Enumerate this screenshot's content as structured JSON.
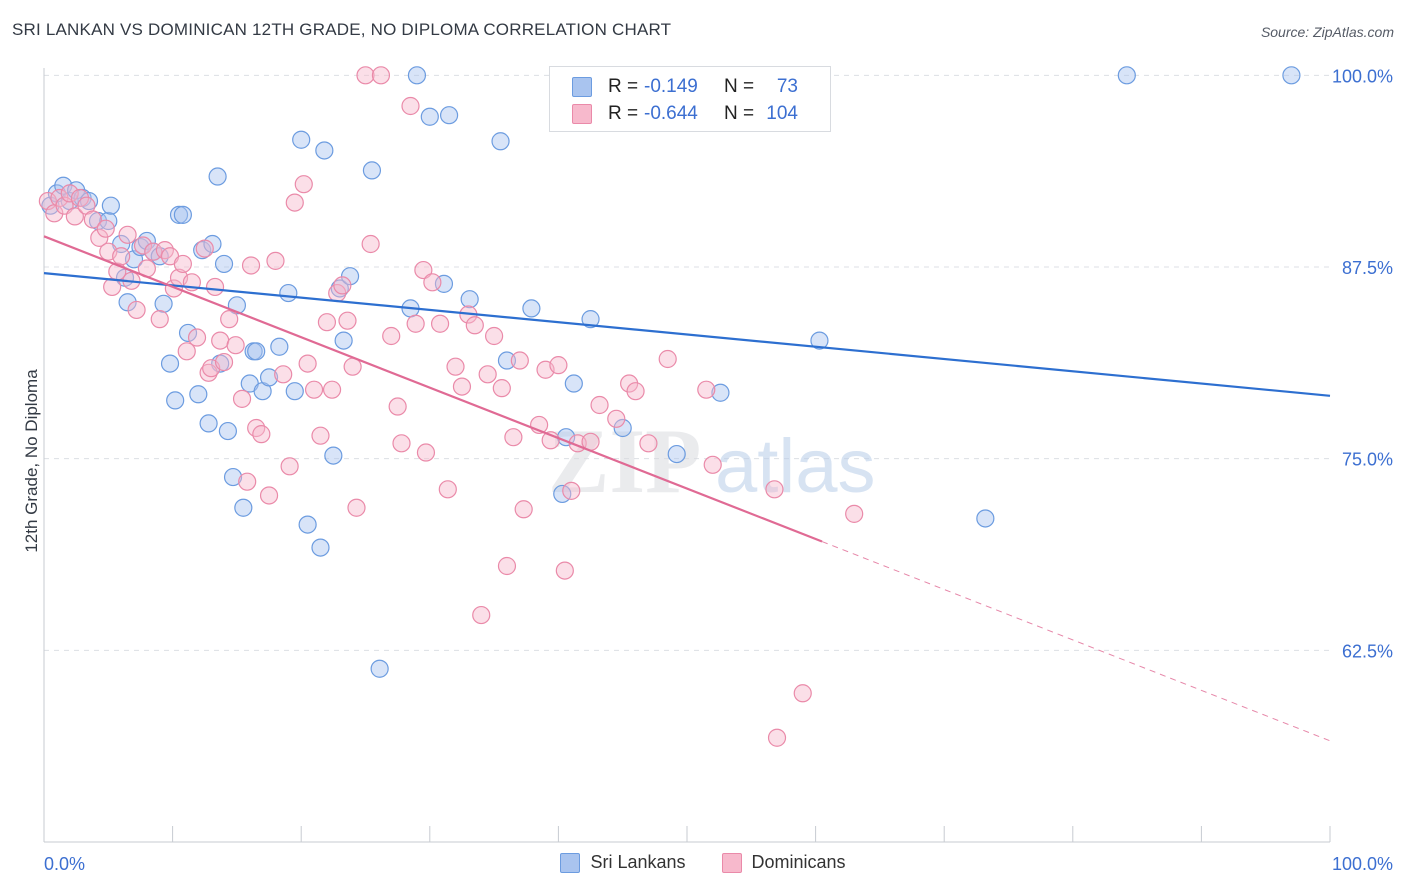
{
  "title": "SRI LANKAN VS DOMINICAN 12TH GRADE, NO DIPLOMA CORRELATION CHART",
  "source": "Source: ZipAtlas.com",
  "watermark": {
    "zip": "ZIP",
    "atlas": "atlas"
  },
  "legend": {
    "r_label": "R =",
    "n_label": "N =",
    "rows": [
      {
        "name": "Sri Lankans",
        "r": "-0.149",
        "n": "73",
        "fill": "#a9c4ef",
        "stroke": "#6c9ce0"
      },
      {
        "name": "Dominicans",
        "r": "-0.644",
        "n": "104",
        "fill": "#f7b9cc",
        "stroke": "#ea8aa9"
      }
    ]
  },
  "colors": {
    "blue_point_fill": "#a9c4ef",
    "blue_point_stroke": "#6c9ce0",
    "blue_line": "#2d6fd0",
    "pink_point_fill": "#f7b9cc",
    "pink_point_stroke": "#ea8aa9",
    "pink_line": "#e06a94",
    "tick_label": "#3c6fd1",
    "grid": "#dcdfe4"
  },
  "chart_data": {
    "type": "scatter",
    "title": "SRI LANKAN VS DOMINICAN 12TH GRADE, NO DIPLOMA CORRELATION CHART",
    "xlabel": "",
    "ylabel": "12th Grade, No Diploma",
    "xlim": [
      0,
      100
    ],
    "ylim": [
      50,
      101
    ],
    "x_tick_labels": [
      {
        "value": 0,
        "label": "0.0%"
      },
      {
        "value": 100,
        "label": "100.0%"
      }
    ],
    "y_tick_labels": [
      {
        "value": 100,
        "label": "100.0%"
      },
      {
        "value": 87.5,
        "label": "87.5%"
      },
      {
        "value": 75,
        "label": "75.0%"
      },
      {
        "value": 62.5,
        "label": "62.5%"
      }
    ],
    "x_minor_ticks": [
      0,
      10,
      20,
      30,
      40,
      50,
      60,
      70,
      80,
      90,
      100
    ],
    "grid": true,
    "legend_position": "top-center",
    "series": [
      {
        "name": "Sri Lankans",
        "trend": {
          "x0": 0,
          "y0": 87.1,
          "x1": 100,
          "y1": 79.1,
          "dashed_from": null
        },
        "points": [
          [
            0.5,
            91.5
          ],
          [
            1.0,
            92.3
          ],
          [
            1.5,
            92.8
          ],
          [
            2.0,
            91.8
          ],
          [
            2.5,
            92.5
          ],
          [
            3.0,
            92.0
          ],
          [
            3.5,
            91.8
          ],
          [
            4.2,
            90.5
          ],
          [
            5.0,
            90.5
          ],
          [
            5.2,
            91.5
          ],
          [
            6.0,
            89.0
          ],
          [
            6.3,
            86.8
          ],
          [
            6.5,
            85.2
          ],
          [
            7.0,
            88.0
          ],
          [
            7.5,
            88.8
          ],
          [
            8.0,
            89.2
          ],
          [
            8.5,
            88.5
          ],
          [
            9.0,
            88.2
          ],
          [
            9.3,
            85.1
          ],
          [
            9.8,
            81.2
          ],
          [
            10.2,
            78.8
          ],
          [
            10.5,
            90.9
          ],
          [
            10.8,
            90.9
          ],
          [
            11.2,
            83.2
          ],
          [
            12.0,
            79.2
          ],
          [
            12.3,
            88.6
          ],
          [
            12.8,
            77.3
          ],
          [
            13.1,
            89.0
          ],
          [
            13.5,
            93.4
          ],
          [
            13.7,
            81.2
          ],
          [
            14.0,
            87.7
          ],
          [
            14.3,
            76.8
          ],
          [
            14.7,
            73.8
          ],
          [
            15.0,
            85.0
          ],
          [
            15.5,
            71.8
          ],
          [
            16.0,
            79.9
          ],
          [
            16.3,
            82.0
          ],
          [
            16.5,
            82.0
          ],
          [
            17.0,
            79.4
          ],
          [
            17.5,
            80.3
          ],
          [
            18.3,
            82.3
          ],
          [
            19.0,
            85.8
          ],
          [
            19.5,
            79.4
          ],
          [
            20.0,
            95.8
          ],
          [
            20.5,
            70.7
          ],
          [
            21.5,
            69.2
          ],
          [
            21.8,
            95.1
          ],
          [
            22.5,
            75.2
          ],
          [
            23.0,
            86.1
          ],
          [
            23.3,
            82.7
          ],
          [
            23.8,
            86.9
          ],
          [
            25.5,
            93.8
          ],
          [
            26.1,
            61.3
          ],
          [
            28.5,
            84.8
          ],
          [
            29.0,
            100.0
          ],
          [
            30.0,
            97.3
          ],
          [
            31.1,
            86.4
          ],
          [
            31.5,
            97.4
          ],
          [
            33.1,
            85.4
          ],
          [
            35.5,
            95.7
          ],
          [
            36.0,
            81.4
          ],
          [
            37.9,
            84.8
          ],
          [
            40.3,
            72.7
          ],
          [
            40.6,
            76.4
          ],
          [
            41.2,
            79.9
          ],
          [
            42.5,
            84.1
          ],
          [
            45.0,
            77.0
          ],
          [
            49.2,
            75.3
          ],
          [
            52.6,
            79.3
          ],
          [
            60.3,
            82.7
          ],
          [
            73.2,
            71.1
          ],
          [
            84.2,
            100.0
          ],
          [
            97.0,
            100.0
          ]
        ]
      },
      {
        "name": "Dominicans",
        "trend": {
          "x0": 0,
          "y0": 89.5,
          "x1": 100,
          "y1": 56.6,
          "dashed_from": 60.5
        },
        "points": [
          [
            0.3,
            91.8
          ],
          [
            0.8,
            91.0
          ],
          [
            1.2,
            92.0
          ],
          [
            1.6,
            91.5
          ],
          [
            2.0,
            92.3
          ],
          [
            2.4,
            90.8
          ],
          [
            2.8,
            92.0
          ],
          [
            3.3,
            91.5
          ],
          [
            3.8,
            90.6
          ],
          [
            4.3,
            89.4
          ],
          [
            4.8,
            90.0
          ],
          [
            5.0,
            88.5
          ],
          [
            5.3,
            86.2
          ],
          [
            5.7,
            87.2
          ],
          [
            6.0,
            88.2
          ],
          [
            6.5,
            89.6
          ],
          [
            6.8,
            86.6
          ],
          [
            7.2,
            84.7
          ],
          [
            7.7,
            88.9
          ],
          [
            8.0,
            87.4
          ],
          [
            8.5,
            88.5
          ],
          [
            9.0,
            84.1
          ],
          [
            9.4,
            88.6
          ],
          [
            9.8,
            88.2
          ],
          [
            10.1,
            86.1
          ],
          [
            10.5,
            86.8
          ],
          [
            10.8,
            87.7
          ],
          [
            11.1,
            82.0
          ],
          [
            11.5,
            86.5
          ],
          [
            11.9,
            82.9
          ],
          [
            12.5,
            88.7
          ],
          [
            12.8,
            80.6
          ],
          [
            13.0,
            80.9
          ],
          [
            13.3,
            86.2
          ],
          [
            13.7,
            82.7
          ],
          [
            14.0,
            81.3
          ],
          [
            14.4,
            84.1
          ],
          [
            14.9,
            82.4
          ],
          [
            15.4,
            78.9
          ],
          [
            15.8,
            73.5
          ],
          [
            16.1,
            87.6
          ],
          [
            16.5,
            77.0
          ],
          [
            16.9,
            76.6
          ],
          [
            17.5,
            72.6
          ],
          [
            18.0,
            87.9
          ],
          [
            18.6,
            80.5
          ],
          [
            19.1,
            74.5
          ],
          [
            19.5,
            91.7
          ],
          [
            20.2,
            92.9
          ],
          [
            20.5,
            81.2
          ],
          [
            21.0,
            79.5
          ],
          [
            21.5,
            76.5
          ],
          [
            22.0,
            83.9
          ],
          [
            22.4,
            79.5
          ],
          [
            22.8,
            85.8
          ],
          [
            23.2,
            86.3
          ],
          [
            23.6,
            84.0
          ],
          [
            24.0,
            81.0
          ],
          [
            24.3,
            71.8
          ],
          [
            25.0,
            100.0
          ],
          [
            25.4,
            89.0
          ],
          [
            26.2,
            100.0
          ],
          [
            27.0,
            83.0
          ],
          [
            27.5,
            78.4
          ],
          [
            27.8,
            76.0
          ],
          [
            28.5,
            98.0
          ],
          [
            28.9,
            83.8
          ],
          [
            29.5,
            87.3
          ],
          [
            29.7,
            75.4
          ],
          [
            30.2,
            86.5
          ],
          [
            30.8,
            83.8
          ],
          [
            31.4,
            73.0
          ],
          [
            32.0,
            81.0
          ],
          [
            32.5,
            79.7
          ],
          [
            33.0,
            84.4
          ],
          [
            33.5,
            83.7
          ],
          [
            34.0,
            64.8
          ],
          [
            34.5,
            80.5
          ],
          [
            35.0,
            83.0
          ],
          [
            35.6,
            79.6
          ],
          [
            36.0,
            68.0
          ],
          [
            36.5,
            76.4
          ],
          [
            37.0,
            81.4
          ],
          [
            37.3,
            71.7
          ],
          [
            38.5,
            77.2
          ],
          [
            39.0,
            80.8
          ],
          [
            39.4,
            76.2
          ],
          [
            40.0,
            81.1
          ],
          [
            40.5,
            67.7
          ],
          [
            41.0,
            72.9
          ],
          [
            41.5,
            76.0
          ],
          [
            42.5,
            76.1
          ],
          [
            43.2,
            78.5
          ],
          [
            44.5,
            77.6
          ],
          [
            45.5,
            79.9
          ],
          [
            46.0,
            79.4
          ],
          [
            47.0,
            76.0
          ],
          [
            48.5,
            81.5
          ],
          [
            51.5,
            79.5
          ],
          [
            52.0,
            74.6
          ],
          [
            56.8,
            73.0
          ],
          [
            57.0,
            56.8
          ],
          [
            59.0,
            59.7
          ],
          [
            63.0,
            71.4
          ]
        ]
      }
    ]
  }
}
